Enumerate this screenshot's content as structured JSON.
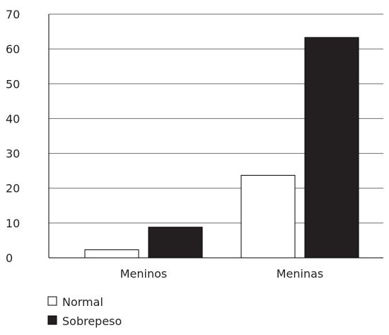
{
  "chart_data": {
    "type": "bar",
    "categories": [
      "Meninos",
      "Meninas"
    ],
    "series": [
      {
        "name": "Normal",
        "values": [
          2.3,
          23.7
        ],
        "fill": "#ffffff",
        "stroke": "#000000"
      },
      {
        "name": "Sobrepeso",
        "values": [
          8.8,
          63.3
        ],
        "fill": "#231f20",
        "stroke": "#000000"
      }
    ],
    "ylim": [
      0,
      70
    ],
    "yticks": [
      0,
      10,
      20,
      30,
      40,
      50,
      60,
      70
    ],
    "grid": true,
    "legend_position": "bottom-left",
    "title": "",
    "xlabel": "",
    "ylabel": ""
  }
}
